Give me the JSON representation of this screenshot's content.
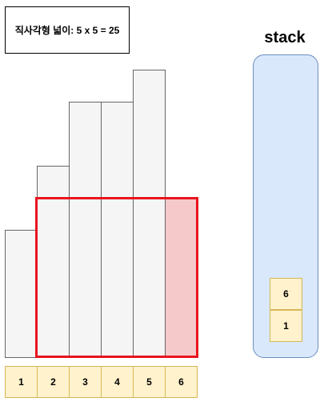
{
  "area_label": "직사각형 넓이: 5 x 5 = 25",
  "histogram": {
    "heights": [
      4,
      6,
      8,
      8,
      9,
      5
    ],
    "max_height": 9,
    "highlight": {
      "from_index": 2,
      "to_index": 6,
      "height": 5
    }
  },
  "indices": [
    "1",
    "2",
    "3",
    "4",
    "5",
    "6"
  ],
  "stack": {
    "title": "stack",
    "items": [
      "6",
      "1"
    ]
  },
  "colors": {
    "highlight_border": "#e8141e",
    "highlight_fill": "#f5c9c9",
    "bar_fill": "#f5f5f5",
    "cell_fill": "#fff2cc",
    "stack_fill": "#dae8fc"
  }
}
